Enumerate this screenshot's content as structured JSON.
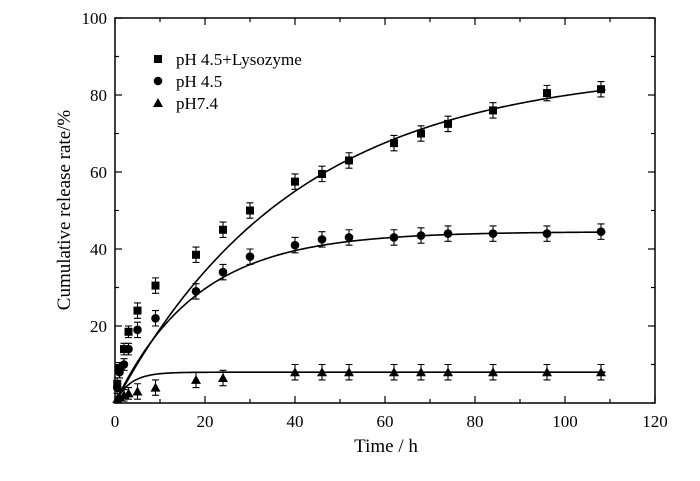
{
  "chart_data": {
    "type": "scatter",
    "xlabel": "Time / h",
    "ylabel": "Cumulative release rate/%",
    "xlim": [
      0,
      120
    ],
    "ylim": [
      0,
      100
    ],
    "xticks": [
      0,
      20,
      40,
      60,
      80,
      100,
      120
    ],
    "yticks": [
      20,
      40,
      60,
      80,
      100
    ],
    "grid": false,
    "legend_position": "top-left",
    "series": [
      {
        "name": "pH 4.5+Lysozyme",
        "marker": "square",
        "x": [
          0.5,
          1,
          2,
          3,
          5,
          9,
          18,
          24,
          30,
          40,
          46,
          52,
          62,
          68,
          74,
          84,
          96,
          108
        ],
        "y": [
          5,
          9,
          14,
          18.5,
          24,
          30.5,
          38.5,
          45,
          50,
          57.5,
          59.5,
          63,
          67.5,
          70,
          72.5,
          76,
          80.5,
          81.5
        ],
        "error": [
          1.5,
          1.5,
          1.5,
          1.5,
          2,
          2,
          2,
          2,
          2,
          2,
          2,
          2,
          2,
          2,
          2,
          2,
          2,
          2
        ],
        "fit": {
          "model": "first-order",
          "max": 87,
          "k": 0.025
        }
      },
      {
        "name": "pH 4.5",
        "marker": "circle",
        "x": [
          0.5,
          1,
          2,
          3,
          5,
          9,
          18,
          24,
          30,
          40,
          46,
          52,
          62,
          68,
          74,
          84,
          96,
          108
        ],
        "y": [
          4,
          8,
          10,
          14,
          19,
          22,
          29,
          34,
          38,
          41,
          42.5,
          43,
          43,
          43.5,
          44,
          44,
          44,
          44.5
        ],
        "error": [
          1.5,
          1.5,
          1.5,
          1.5,
          2,
          2,
          2,
          2,
          2,
          2,
          2,
          2,
          2,
          2,
          2,
          2,
          2,
          2
        ],
        "fit": {
          "model": "first-order",
          "max": 44.5,
          "k": 0.055
        }
      },
      {
        "name": "pH7.4",
        "marker": "triangle",
        "x": [
          0.5,
          1,
          2,
          3,
          5,
          9,
          18,
          24,
          40,
          46,
          52,
          62,
          68,
          74,
          84,
          96,
          108
        ],
        "y": [
          1,
          1.5,
          2,
          2.5,
          3,
          4,
          6,
          6.5,
          8,
          8,
          8,
          8,
          8,
          8,
          8,
          8,
          8
        ],
        "error": [
          1.5,
          1.5,
          1.5,
          1.5,
          2,
          2,
          2,
          2,
          2,
          2,
          2,
          2,
          2,
          2,
          2,
          2,
          2
        ],
        "fit": {
          "model": "first-order",
          "max": 8,
          "k": 0.3
        }
      }
    ]
  }
}
